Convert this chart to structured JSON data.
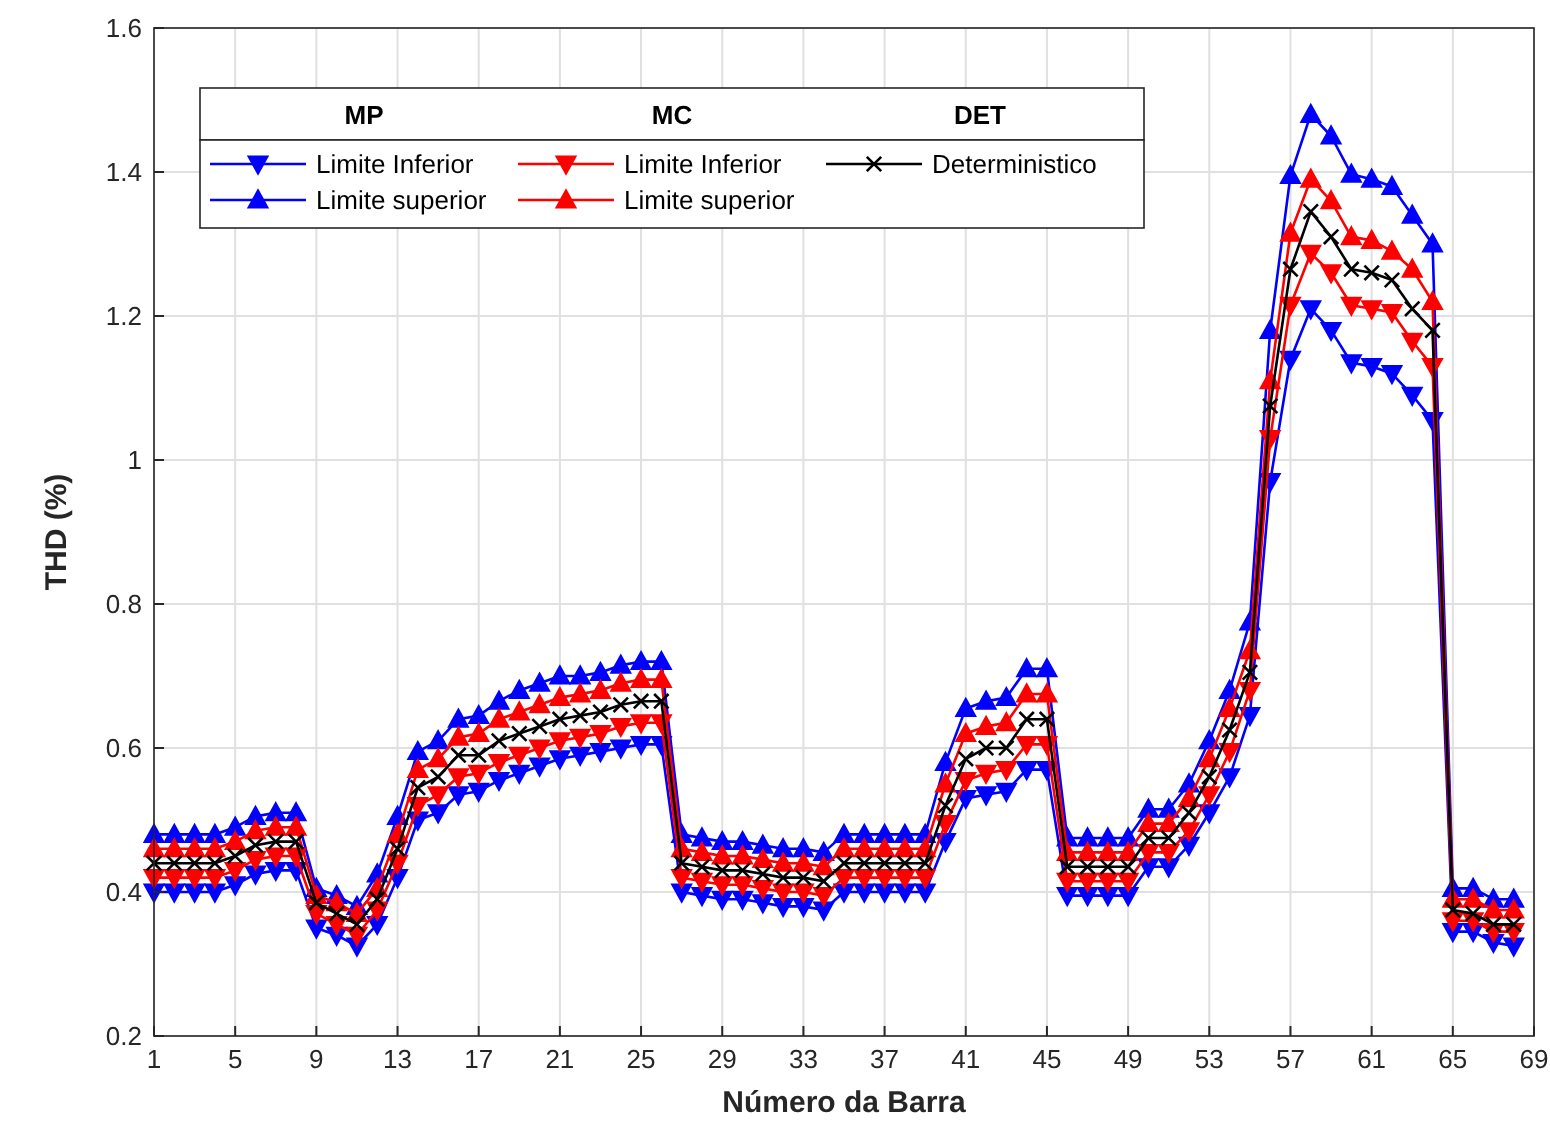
{
  "chart_data": {
    "type": "line",
    "xlabel": "Número da Barra",
    "ylabel": "THD (%)",
    "x": [
      1,
      2,
      3,
      4,
      5,
      6,
      7,
      8,
      9,
      10,
      11,
      12,
      13,
      14,
      15,
      16,
      17,
      18,
      19,
      20,
      21,
      22,
      23,
      24,
      25,
      26,
      27,
      28,
      29,
      30,
      31,
      32,
      33,
      34,
      35,
      36,
      37,
      38,
      39,
      40,
      41,
      42,
      43,
      44,
      45,
      46,
      47,
      48,
      49,
      50,
      51,
      52,
      53,
      54,
      55,
      56,
      57,
      58,
      59,
      60,
      61,
      62,
      63,
      64,
      65,
      66,
      67,
      68
    ],
    "xlim": [
      1,
      69
    ],
    "xticks": [
      1,
      5,
      9,
      13,
      17,
      21,
      25,
      29,
      33,
      37,
      41,
      45,
      49,
      53,
      57,
      61,
      65,
      69
    ],
    "ylim": [
      0.2,
      1.6
    ],
    "yticks": [
      0.2,
      0.4,
      0.6,
      0.8,
      1,
      1.2,
      1.4,
      1.6
    ],
    "grid": true,
    "legend": "top left",
    "line_style": "solid",
    "annotations": [
      "MP",
      "MC",
      "DET"
    ],
    "series": [
      {
        "name": "Limite Inferior",
        "color": "#0000ff",
        "marker": "triangle-down",
        "values": [
          0.4,
          0.4,
          0.4,
          0.4,
          0.41,
          0.425,
          0.43,
          0.43,
          0.35,
          0.34,
          0.325,
          0.355,
          0.42,
          0.5,
          0.51,
          0.535,
          0.54,
          0.555,
          0.565,
          0.575,
          0.585,
          0.59,
          0.595,
          0.6,
          0.605,
          0.605,
          0.4,
          0.395,
          0.39,
          0.39,
          0.385,
          0.38,
          0.38,
          0.375,
          0.4,
          0.4,
          0.4,
          0.4,
          0.4,
          0.47,
          0.53,
          0.535,
          0.54,
          0.57,
          0.57,
          0.395,
          0.395,
          0.395,
          0.395,
          0.435,
          0.435,
          0.465,
          0.51,
          0.56,
          0.645,
          0.97,
          1.14,
          1.21,
          1.18,
          1.135,
          1.13,
          1.12,
          1.09,
          1.055,
          0.345,
          0.345,
          0.33,
          0.325
        ]
      },
      {
        "name": "Limite superior",
        "color": "#0000ff",
        "marker": "triangle",
        "values": [
          0.48,
          0.48,
          0.48,
          0.48,
          0.49,
          0.505,
          0.51,
          0.51,
          0.405,
          0.395,
          0.38,
          0.425,
          0.505,
          0.595,
          0.61,
          0.64,
          0.645,
          0.665,
          0.68,
          0.69,
          0.7,
          0.7,
          0.705,
          0.715,
          0.72,
          0.72,
          0.48,
          0.475,
          0.47,
          0.47,
          0.465,
          0.46,
          0.46,
          0.455,
          0.48,
          0.48,
          0.48,
          0.48,
          0.48,
          0.58,
          0.655,
          0.665,
          0.67,
          0.71,
          0.71,
          0.475,
          0.475,
          0.475,
          0.475,
          0.515,
          0.515,
          0.55,
          0.61,
          0.68,
          0.775,
          1.18,
          1.395,
          1.48,
          1.45,
          1.397,
          1.39,
          1.38,
          1.34,
          1.3,
          0.405,
          0.405,
          0.39,
          0.39
        ]
      },
      {
        "name": "Limite Inferior",
        "color": "#ff0000",
        "marker": "triangle-down",
        "values": [
          0.42,
          0.42,
          0.42,
          0.42,
          0.43,
          0.445,
          0.45,
          0.45,
          0.37,
          0.355,
          0.34,
          0.375,
          0.44,
          0.52,
          0.535,
          0.56,
          0.565,
          0.58,
          0.59,
          0.6,
          0.61,
          0.615,
          0.62,
          0.63,
          0.635,
          0.635,
          0.42,
          0.415,
          0.41,
          0.41,
          0.405,
          0.4,
          0.4,
          0.395,
          0.42,
          0.42,
          0.42,
          0.42,
          0.42,
          0.495,
          0.555,
          0.565,
          0.57,
          0.605,
          0.605,
          0.415,
          0.415,
          0.415,
          0.415,
          0.455,
          0.455,
          0.485,
          0.535,
          0.595,
          0.68,
          1.03,
          1.215,
          1.287,
          1.26,
          1.215,
          1.21,
          1.205,
          1.165,
          1.13,
          0.36,
          0.36,
          0.345,
          0.345
        ]
      },
      {
        "name": "Limite superior",
        "color": "#ff0000",
        "marker": "triangle",
        "values": [
          0.46,
          0.46,
          0.46,
          0.46,
          0.47,
          0.485,
          0.49,
          0.49,
          0.395,
          0.385,
          0.37,
          0.405,
          0.48,
          0.57,
          0.585,
          0.615,
          0.62,
          0.64,
          0.65,
          0.66,
          0.67,
          0.675,
          0.68,
          0.69,
          0.695,
          0.695,
          0.46,
          0.455,
          0.45,
          0.45,
          0.445,
          0.44,
          0.44,
          0.435,
          0.46,
          0.46,
          0.46,
          0.46,
          0.46,
          0.55,
          0.62,
          0.63,
          0.635,
          0.675,
          0.675,
          0.455,
          0.455,
          0.455,
          0.455,
          0.495,
          0.495,
          0.53,
          0.585,
          0.655,
          0.735,
          1.11,
          1.315,
          1.39,
          1.36,
          1.31,
          1.305,
          1.29,
          1.265,
          1.22,
          0.39,
          0.39,
          0.375,
          0.375
        ]
      },
      {
        "name": "Deterministico",
        "color": "#000000",
        "marker": "cross",
        "values": [
          0.44,
          0.44,
          0.44,
          0.44,
          0.45,
          0.465,
          0.47,
          0.47,
          0.385,
          0.37,
          0.355,
          0.39,
          0.46,
          0.545,
          0.56,
          0.59,
          0.59,
          0.61,
          0.62,
          0.63,
          0.64,
          0.645,
          0.65,
          0.66,
          0.665,
          0.665,
          0.44,
          0.435,
          0.43,
          0.43,
          0.425,
          0.42,
          0.42,
          0.415,
          0.44,
          0.44,
          0.44,
          0.44,
          0.44,
          0.52,
          0.585,
          0.6,
          0.6,
          0.64,
          0.64,
          0.435,
          0.435,
          0.435,
          0.435,
          0.475,
          0.475,
          0.51,
          0.56,
          0.625,
          0.705,
          1.075,
          1.265,
          1.345,
          1.31,
          1.265,
          1.26,
          1.25,
          1.21,
          1.18,
          0.375,
          0.37,
          0.355,
          0.355
        ]
      }
    ]
  }
}
